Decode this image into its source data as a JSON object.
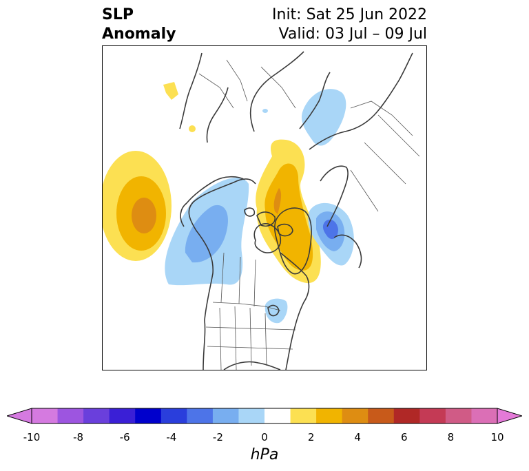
{
  "title": {
    "left_line1": "SLP",
    "left_line2": "Anomaly",
    "right_line1": "Init: Sat 25 Jun 2022",
    "right_line2": "Valid: 03 Jul – 09 Jul"
  },
  "colorbar": {
    "unit": "hPa",
    "ticks": [
      "-10",
      "-8",
      "-6",
      "-4",
      "-2",
      "0",
      "2",
      "4",
      "6",
      "8",
      "10"
    ],
    "colors": [
      "#d57ae0",
      "#9d55e0",
      "#6a3fdc",
      "#3a1fd6",
      "#0000cc",
      "#2a3edc",
      "#4d74e8",
      "#78aef0",
      "#a9d6f7",
      "#ffffff",
      "#fce052",
      "#f1b400",
      "#de8d12",
      "#c85a1a",
      "#b02826",
      "#c43a55",
      "#d05b86",
      "#db6fb6"
    ],
    "extend_low_color": "#d57ae0",
    "extend_high_color": "#e47ad8"
  },
  "map": {
    "projection": "polar stereographic (North America / Arctic)",
    "features": [
      "coastlines",
      "country borders",
      "US state borders",
      "Canadian provinces"
    ]
  }
}
